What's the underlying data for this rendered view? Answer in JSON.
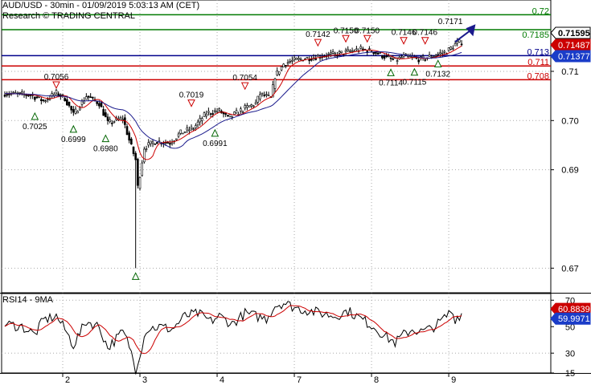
{
  "header": {
    "title": "AUD/USD - 30min - 01/09/2019 5:03:13 AM (CET)",
    "subtitle": "Research © TRADING CENTRAL"
  },
  "colors": {
    "candle": "#000000",
    "ma_fast": "#cc0000",
    "ma_slow": "#1a1a8c",
    "resistance": "#007a00",
    "support": "#cc0000",
    "pivot": "#00008b",
    "arrow": "#1a1a8c",
    "rsi_line": "#000000",
    "rsi_ma": "#cc0000"
  },
  "chart_data": [
    {
      "type": "candlestick",
      "ylim": [
        0.665,
        0.7245
      ],
      "y_ticks": [
        "0.71",
        "0.70",
        "0.69",
        "0.67"
      ],
      "y_tick_values": [
        0.71,
        0.7,
        0.69,
        0.67
      ],
      "x_ticks": [
        "2",
        "3",
        "4",
        "7",
        "8",
        "9"
      ],
      "x_tick_index": [
        27,
        63,
        99,
        135,
        171,
        207
      ],
      "bar_count": 214,
      "levels": [
        {
          "label": "0.72",
          "value": 0.7215,
          "kind": "resistance"
        },
        {
          "label": "0.7185",
          "value": 0.71847,
          "kind": "resistance"
        },
        {
          "label": "0.713",
          "value": 0.7132,
          "kind": "pivot"
        },
        {
          "label": "0.711",
          "value": 0.7111,
          "kind": "support"
        },
        {
          "label": "0.708",
          "value": 0.7083,
          "kind": "support"
        }
      ],
      "price_tags": [
        {
          "label": "0.71595",
          "value": 0.71595,
          "style": "last"
        },
        {
          "label": "0.71487",
          "value": 0.71487,
          "style": "ma_fast"
        },
        {
          "label": "0.71377",
          "value": 0.71377,
          "style": "ma_slow"
        }
      ],
      "anchors": [
        [
          0,
          0.7055
        ],
        [
          12,
          0.7052
        ],
        [
          18,
          0.704
        ],
        [
          24,
          0.7056
        ],
        [
          28,
          0.7045
        ],
        [
          32,
          0.7012
        ],
        [
          38,
          0.705
        ],
        [
          44,
          0.7035
        ],
        [
          48,
          0.6995
        ],
        [
          55,
          0.7005
        ],
        [
          58,
          0.696
        ],
        [
          61,
          0.692
        ],
        [
          62,
          0.6865
        ],
        [
          63,
          0.689
        ],
        [
          65,
          0.6945
        ],
        [
          70,
          0.6958
        ],
        [
          77,
          0.6955
        ],
        [
          82,
          0.6975
        ],
        [
          88,
          0.6985
        ],
        [
          94,
          0.7015
        ],
        [
          100,
          0.702
        ],
        [
          104,
          0.7005
        ],
        [
          108,
          0.7015
        ],
        [
          112,
          0.7025
        ],
        [
          117,
          0.7035
        ],
        [
          119,
          0.7054
        ],
        [
          124,
          0.7045
        ],
        [
          126,
          0.709
        ],
        [
          130,
          0.7115
        ],
        [
          133,
          0.712
        ],
        [
          138,
          0.7125
        ],
        [
          143,
          0.7128
        ],
        [
          148,
          0.7132
        ],
        [
          155,
          0.7135
        ],
        [
          160,
          0.714
        ],
        [
          166,
          0.7145
        ],
        [
          172,
          0.714
        ],
        [
          178,
          0.7128
        ],
        [
          182,
          0.7122
        ],
        [
          186,
          0.713
        ],
        [
          190,
          0.7128
        ],
        [
          194,
          0.7124
        ],
        [
          198,
          0.713
        ],
        [
          202,
          0.7135
        ],
        [
          206,
          0.714
        ],
        [
          210,
          0.7155
        ],
        [
          213,
          0.716
        ]
      ],
      "spikes": [
        [
          61,
          0.67
        ],
        [
          62,
          0.689
        ]
      ],
      "markers": [
        {
          "label": "0.7025",
          "i": 14,
          "value": 0.7025,
          "dir": "up"
        },
        {
          "label": "0.7056",
          "i": 24,
          "value": 0.7056,
          "dir": "down"
        },
        {
          "label": "0.6999",
          "i": 32,
          "value": 0.6999,
          "dir": "up"
        },
        {
          "label": "0.6980",
          "i": 47,
          "value": 0.698,
          "dir": "up"
        },
        {
          "label": "0.6700",
          "i": 61,
          "value": 0.67,
          "dir": "up",
          "hide_label": true
        },
        {
          "label": "0.7019",
          "i": 87,
          "value": 0.7019,
          "dir": "down"
        },
        {
          "label": "0.6991",
          "i": 98,
          "value": 0.6991,
          "dir": "up"
        },
        {
          "label": "0.7054",
          "i": 112,
          "value": 0.7054,
          "dir": "down"
        },
        {
          "label": "0.7142",
          "i": 146,
          "value": 0.7142,
          "dir": "down"
        },
        {
          "label": "0.7150",
          "i": 159,
          "value": 0.715,
          "dir": "down"
        },
        {
          "label": "0.7150",
          "i": 169,
          "value": 0.715,
          "dir": "down"
        },
        {
          "label": "0.7114",
          "i": 180,
          "value": 0.7114,
          "dir": "up"
        },
        {
          "label": "0.7146",
          "i": 186,
          "value": 0.7146,
          "dir": "down"
        },
        {
          "label": "0.7115",
          "i": 191,
          "value": 0.7115,
          "dir": "up"
        },
        {
          "label": "0.7146",
          "i": 196,
          "value": 0.7146,
          "dir": "down"
        },
        {
          "label": "0.7132",
          "i": 202,
          "value": 0.7132,
          "dir": "up"
        }
      ],
      "projection": {
        "label": "0.7171",
        "from": [
          210,
          0.716
        ],
        "to": [
          218,
          0.7186
        ]
      }
    },
    {
      "type": "line",
      "title": "RSI14 - 9MA",
      "ylim": [
        15,
        75
      ],
      "y_ticks": [
        "70",
        "50",
        "30",
        "15"
      ],
      "y_tick_values": [
        70,
        50,
        30,
        15
      ],
      "price_tags": [
        {
          "label": "60.8839",
          "value": 61.0,
          "style": "rsi_ma"
        },
        {
          "label": "59.9971",
          "value": 58.5,
          "style": "rsi_last"
        }
      ],
      "anchors": [
        [
          0,
          52
        ],
        [
          8,
          50
        ],
        [
          14,
          44
        ],
        [
          18,
          55
        ],
        [
          24,
          58
        ],
        [
          28,
          48
        ],
        [
          32,
          36
        ],
        [
          38,
          54
        ],
        [
          44,
          50
        ],
        [
          48,
          34
        ],
        [
          55,
          46
        ],
        [
          58,
          36
        ],
        [
          61,
          18
        ],
        [
          63,
          30
        ],
        [
          66,
          48
        ],
        [
          72,
          50
        ],
        [
          78,
          48
        ],
        [
          84,
          58
        ],
        [
          90,
          60
        ],
        [
          96,
          54
        ],
        [
          100,
          58
        ],
        [
          106,
          52
        ],
        [
          112,
          60
        ],
        [
          117,
          58
        ],
        [
          122,
          56
        ],
        [
          126,
          66
        ],
        [
          130,
          68
        ],
        [
          136,
          64
        ],
        [
          142,
          62
        ],
        [
          148,
          60
        ],
        [
          154,
          58
        ],
        [
          160,
          62
        ],
        [
          166,
          56
        ],
        [
          172,
          50
        ],
        [
          178,
          42
        ],
        [
          182,
          38
        ],
        [
          186,
          44
        ],
        [
          190,
          48
        ],
        [
          194,
          46
        ],
        [
          198,
          48
        ],
        [
          202,
          52
        ],
        [
          206,
          58
        ],
        [
          208,
          62
        ],
        [
          210,
          56
        ],
        [
          213,
          60
        ]
      ]
    }
  ]
}
